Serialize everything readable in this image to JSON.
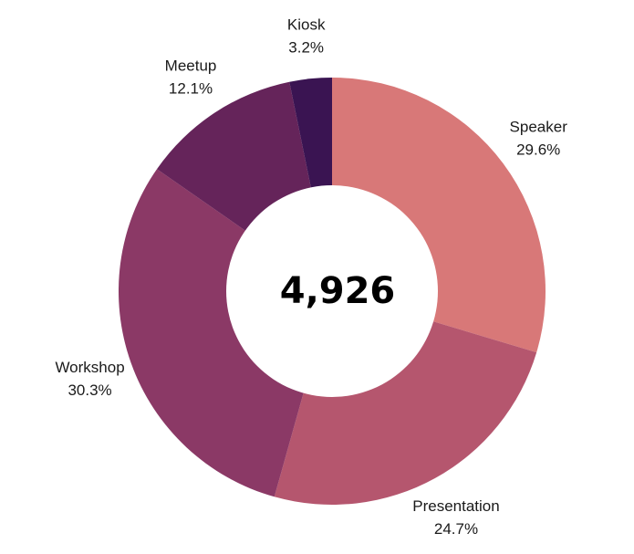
{
  "chart_data": {
    "type": "pie",
    "variant": "donut",
    "center_label": "4,926",
    "categories": [
      "Speaker",
      "Presentation",
      "Workshop",
      "Meetup",
      "Kiosk"
    ],
    "values": [
      29.6,
      24.7,
      30.3,
      12.1,
      3.2
    ],
    "value_labels": [
      "29.6%",
      "24.7%",
      "30.3%",
      "12.1%",
      "3.2%"
    ],
    "colors": [
      "#d87878",
      "#b5566e",
      "#8b3966",
      "#65245a",
      "#3a1452"
    ],
    "start_angle": "top (12 o'clock)",
    "direction": "clockwise",
    "legend": "none (labels placed next to slices)"
  }
}
